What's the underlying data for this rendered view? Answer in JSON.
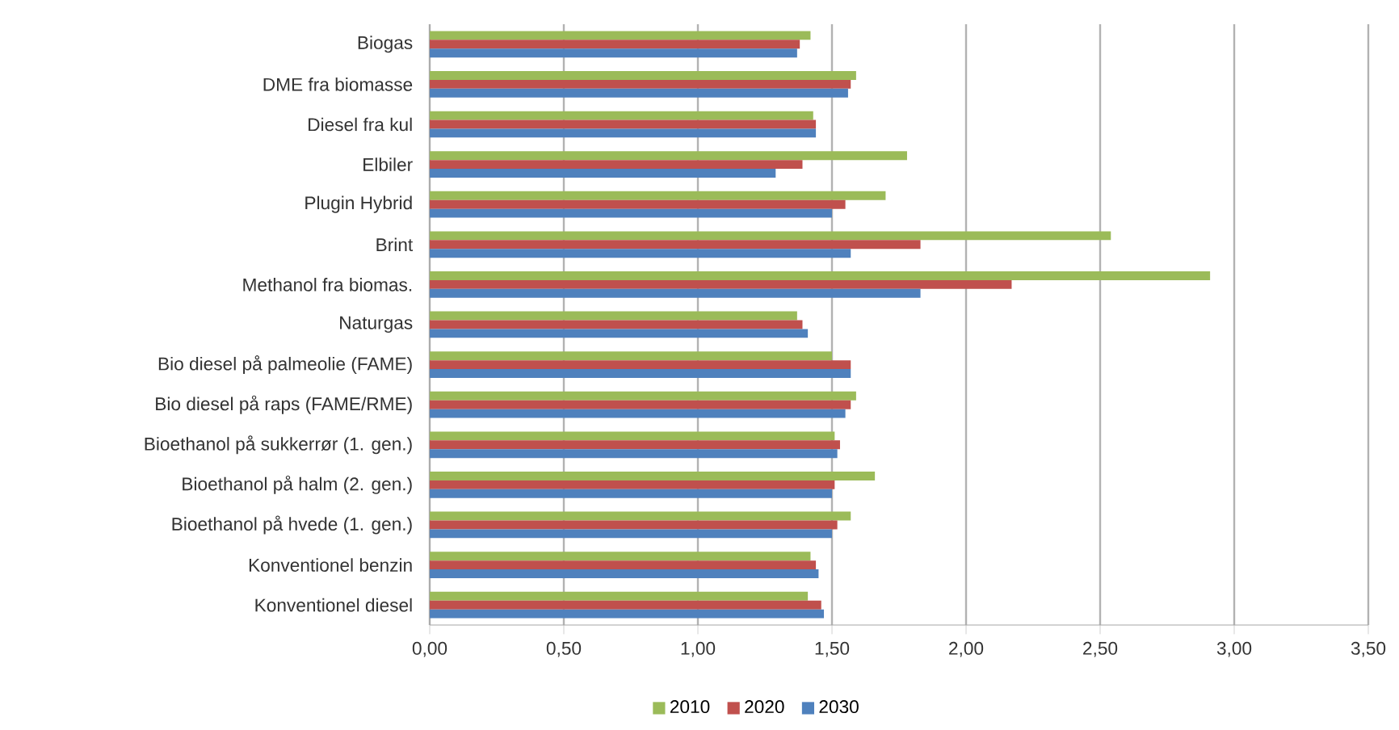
{
  "chart_data": {
    "type": "bar",
    "orientation": "horizontal",
    "categories": [
      "Biogas",
      "DME fra biomasse",
      "Diesel fra kul",
      "Elbiler",
      "Plugin Hybrid",
      "Brint",
      "Methanol fra biomas.",
      "Naturgas",
      "Bio diesel på palmeolie (FAME)",
      "Bio diesel på raps (FAME/RME)",
      "Bioethanol på sukkerrør (1. gen.)",
      "Bioethanol på halm (2. gen.)",
      "Bioethanol på hvede (1. gen.)",
      "Konventionel benzin",
      "Konventionel diesel"
    ],
    "series": [
      {
        "name": "2010",
        "color": "#9bbb59",
        "values": [
          1.42,
          1.59,
          1.43,
          1.78,
          1.7,
          2.54,
          2.91,
          1.37,
          1.5,
          1.59,
          1.51,
          1.66,
          1.57,
          1.42,
          1.41
        ]
      },
      {
        "name": "2020",
        "color": "#c0504d",
        "values": [
          1.38,
          1.57,
          1.44,
          1.39,
          1.55,
          1.83,
          2.17,
          1.39,
          1.57,
          1.57,
          1.53,
          1.51,
          1.52,
          1.44,
          1.46
        ]
      },
      {
        "name": "2030",
        "color": "#4f81bd",
        "values": [
          1.37,
          1.56,
          1.44,
          1.29,
          1.5,
          1.57,
          1.83,
          1.41,
          1.57,
          1.55,
          1.52,
          1.5,
          1.5,
          1.45,
          1.47
        ]
      }
    ],
    "xlim": [
      0,
      3.5
    ],
    "xticks": [
      {
        "value": 0,
        "label": "0,00"
      },
      {
        "value": 0.5,
        "label": "0,50"
      },
      {
        "value": 1,
        "label": "1,00"
      },
      {
        "value": 1.5,
        "label": "1,50"
      },
      {
        "value": 2,
        "label": "2,00"
      },
      {
        "value": 2.5,
        "label": "2,50"
      },
      {
        "value": 3,
        "label": "3,00"
      },
      {
        "value": 3.5,
        "label": "3,50"
      }
    ],
    "grid": "x",
    "legend": "bottom"
  }
}
